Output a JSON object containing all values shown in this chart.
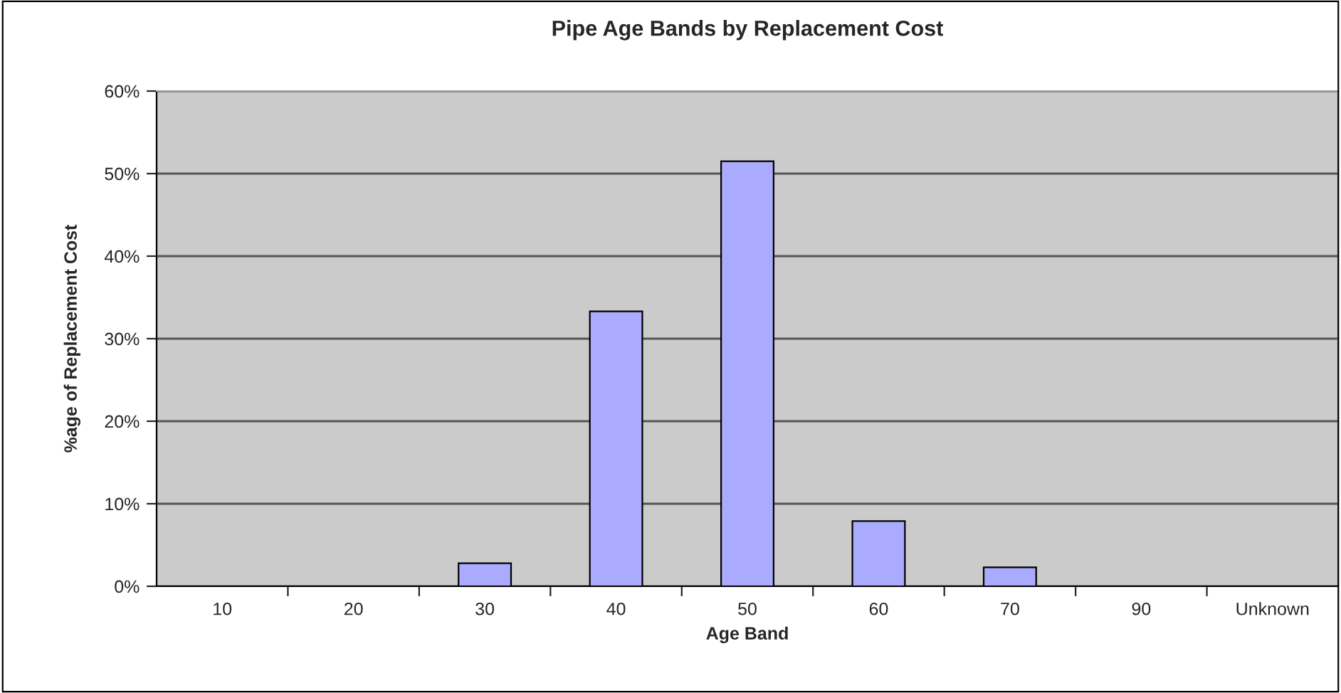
{
  "chart_data": {
    "type": "bar",
    "title": "Pipe Age Bands by Replacement Cost",
    "xlabel": "Age Band",
    "ylabel": "%age of Replacement Cost",
    "categories": [
      "10",
      "20",
      "30",
      "40",
      "50",
      "60",
      "70",
      "90",
      "Unknown"
    ],
    "values": [
      0,
      0,
      2.8,
      33.3,
      51.5,
      7.9,
      2.3,
      0,
      0
    ],
    "color": "#aaaaff",
    "ylim": [
      0,
      60
    ],
    "yticks": [
      {
        "value": 0,
        "label": "0%"
      },
      {
        "value": 10,
        "label": "10%"
      },
      {
        "value": 20,
        "label": "20%"
      },
      {
        "value": 30,
        "label": "30%"
      },
      {
        "value": 40,
        "label": "40%"
      },
      {
        "value": 50,
        "label": "50%"
      },
      {
        "value": 60,
        "label": "60%"
      }
    ],
    "grid": "y",
    "legend": false
  }
}
